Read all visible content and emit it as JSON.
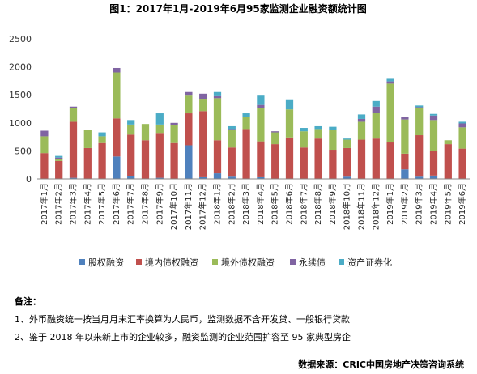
{
  "chart_data": {
    "type": "bar",
    "stacked": true,
    "title": "图1：2017年1月-2019年6月95家监测企业融资额统计图",
    "ylim": [
      0,
      2500
    ],
    "yticks": [
      0,
      500,
      1000,
      1500,
      2000,
      2500
    ],
    "grid": false,
    "legend_position": "bottom",
    "categories": [
      "2017年1月",
      "2017年2月",
      "2017年3月",
      "2017年4月",
      "2017年5月",
      "2017年6月",
      "2017年7月",
      "2017年8月",
      "2017年9月",
      "2017年10月",
      "2017年11月",
      "2017年12月",
      "2018年1月",
      "2018年2月",
      "2018年3月",
      "2018年4月",
      "2018年5月",
      "2018年6月",
      "2018年7月",
      "2018年8月",
      "2018年9月",
      "2018年10月",
      "2018年11月",
      "2018年12月",
      "2019年1月",
      "2019年2月",
      "2019年3月",
      "2019年4月",
      "2019年5月",
      "2019年6月"
    ],
    "series": [
      {
        "name": "股权融资",
        "color": "#4f81bd",
        "values": [
          0,
          0,
          20,
          0,
          0,
          400,
          50,
          0,
          20,
          0,
          600,
          30,
          100,
          40,
          0,
          30,
          0,
          0,
          0,
          0,
          0,
          40,
          0,
          0,
          0,
          170,
          40,
          60,
          0,
          0
        ]
      },
      {
        "name": "境内债权融资",
        "color": "#c0504d",
        "values": [
          460,
          320,
          1000,
          550,
          640,
          680,
          740,
          690,
          800,
          640,
          570,
          1180,
          590,
          520,
          890,
          640,
          620,
          740,
          560,
          720,
          520,
          510,
          700,
          720,
          650,
          280,
          740,
          440,
          620,
          540
        ]
      },
      {
        "name": "境外债权融资",
        "color": "#9bbb59",
        "values": [
          300,
          40,
          240,
          330,
          120,
          820,
          180,
          290,
          150,
          320,
          330,
          220,
          750,
          310,
          220,
          600,
          210,
          500,
          290,
          170,
          350,
          150,
          320,
          460,
          1050,
          610,
          480,
          550,
          70,
          380
        ]
      },
      {
        "name": "永续债",
        "color": "#8064a2",
        "values": [
          100,
          20,
          30,
          0,
          0,
          80,
          0,
          0,
          0,
          40,
          50,
          90,
          50,
          20,
          0,
          50,
          20,
          0,
          0,
          0,
          0,
          0,
          50,
          110,
          40,
          40,
          20,
          80,
          0,
          70
        ]
      },
      {
        "name": "资产证券化",
        "color": "#4bacc6",
        "values": [
          0,
          30,
          0,
          0,
          70,
          0,
          80,
          0,
          200,
          0,
          0,
          0,
          60,
          50,
          60,
          180,
          0,
          180,
          60,
          50,
          60,
          20,
          80,
          100,
          60,
          0,
          30,
          30,
          0,
          30
        ]
      }
    ]
  },
  "notes": {
    "header": "备注：",
    "line1": "1、外币融资统一按当月月末汇率换算为人民币，监测数据不含开发贷、一般银行贷款",
    "line2": "2、鉴于 2018 年以来新上市的企业较多，融资监测的企业范围扩容至 95 家典型房企"
  },
  "source": "数据来源：CRIC中国房地产决策咨询系统"
}
